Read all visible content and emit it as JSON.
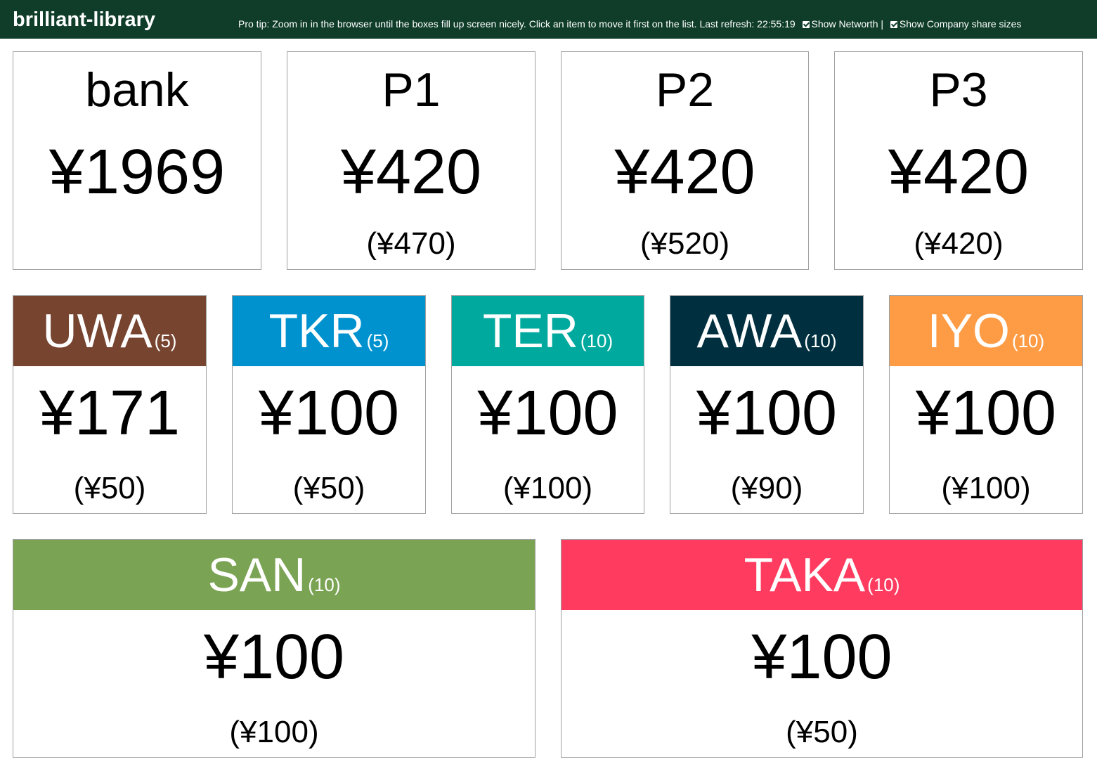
{
  "header": {
    "brand": "brilliant-library",
    "tip_text": "Pro tip: Zoom in in the browser until the boxes fill up screen nicely. Click an item to move it first on the list. Last refresh: 22:55:19",
    "networth_label": "Show Networth |",
    "share_sizes_label": "Show Company share sizes",
    "networth_checked": true,
    "share_sizes_checked": true
  },
  "players": [
    {
      "name": "bank",
      "cash": "¥1969",
      "networth": ""
    },
    {
      "name": "P1",
      "cash": "¥420",
      "networth": "(¥470)"
    },
    {
      "name": "P2",
      "cash": "¥420",
      "networth": "(¥520)"
    },
    {
      "name": "P3",
      "cash": "¥420",
      "networth": "(¥420)"
    }
  ],
  "companies": [
    {
      "abbr": "UWA",
      "shares": "(5)",
      "cash": "¥171",
      "value": "(¥50)",
      "color": "#774430"
    },
    {
      "abbr": "TKR",
      "shares": "(5)",
      "cash": "¥100",
      "value": "(¥50)",
      "color": "#0092cf"
    },
    {
      "abbr": "TER",
      "shares": "(10)",
      "cash": "¥100",
      "value": "(¥100)",
      "color": "#00a99d"
    },
    {
      "abbr": "AWA",
      "shares": "(10)",
      "cash": "¥100",
      "value": "(¥90)",
      "color": "#00303f"
    },
    {
      "abbr": "IYO",
      "shares": "(10)",
      "cash": "¥100",
      "value": "(¥100)",
      "color": "#fe9c46"
    },
    {
      "abbr": "SAN",
      "shares": "(10)",
      "cash": "¥100",
      "value": "(¥100)",
      "color": "#7aa354"
    },
    {
      "abbr": "TAKA",
      "shares": "(10)",
      "cash": "¥100",
      "value": "(¥50)",
      "color": "#ff3b5f"
    }
  ]
}
